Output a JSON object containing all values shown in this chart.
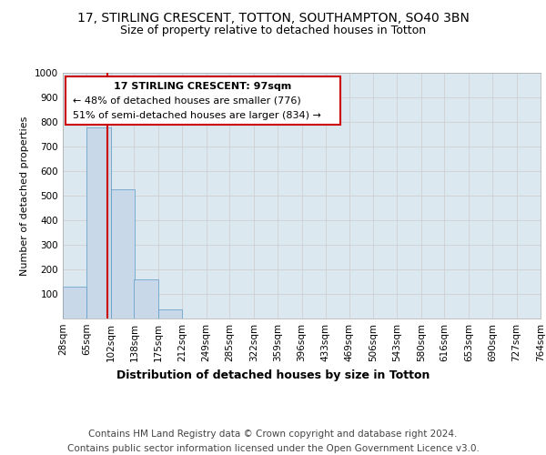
{
  "title1": "17, STIRLING CRESCENT, TOTTON, SOUTHAMPTON, SO40 3BN",
  "title2": "Size of property relative to detached houses in Totton",
  "xlabel": "Distribution of detached houses by size in Totton",
  "ylabel": "Number of detached properties",
  "footer1": "Contains HM Land Registry data © Crown copyright and database right 2024.",
  "footer2": "Contains public sector information licensed under the Open Government Licence v3.0.",
  "annotation_line1": "17 STIRLING CRESCENT: 97sqm",
  "annotation_line2": "← 48% of detached houses are smaller (776)",
  "annotation_line3": "51% of semi-detached houses are larger (834) →",
  "property_size": 97,
  "bin_edges": [
    28,
    65,
    102,
    138,
    175,
    212,
    249,
    285,
    322,
    359,
    396,
    433,
    469,
    506,
    543,
    580,
    616,
    653,
    690,
    727,
    764
  ],
  "bar_values": [
    130,
    776,
    527,
    160,
    37,
    0,
    0,
    0,
    0,
    0,
    0,
    0,
    0,
    0,
    0,
    0,
    0,
    0,
    0,
    0
  ],
  "bar_color": "#c8d8e8",
  "bar_edge_color": "#5a9ac8",
  "vline_color": "#cc0000",
  "vline_x": 97,
  "ylim": [
    0,
    1000
  ],
  "yticks": [
    0,
    100,
    200,
    300,
    400,
    500,
    600,
    700,
    800,
    900,
    1000
  ],
  "grid_color": "#cccccc",
  "bg_color": "#dce8f0",
  "annotation_box_color": "#cc0000",
  "title1_fontsize": 10,
  "title2_fontsize": 9,
  "xlabel_fontsize": 9,
  "ylabel_fontsize": 8,
  "tick_fontsize": 7.5,
  "footer_fontsize": 7.5
}
